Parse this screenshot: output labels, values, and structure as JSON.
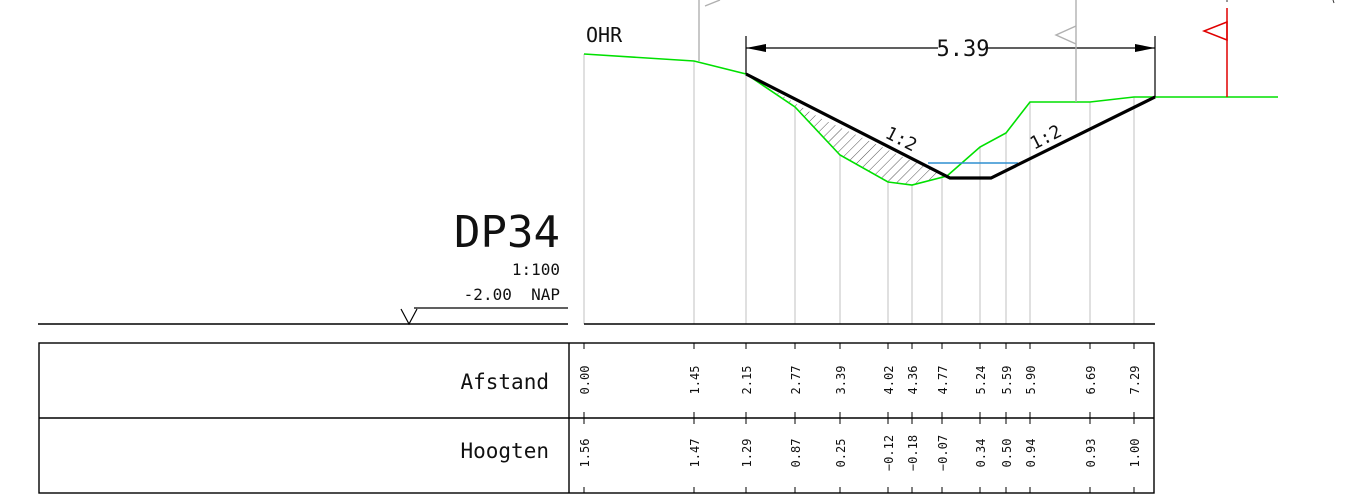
{
  "profile": {
    "name": "DP34",
    "scale": "1:100",
    "reference": "-2.00  NAP",
    "ohr_label": "OHR",
    "width_dimension": "5.39",
    "slope_left": "1:2",
    "slope_right": "1:2"
  },
  "table": {
    "row1_label": "Afstand",
    "row2_label": "Hoogten",
    "afstand": [
      "0.00",
      "1.45",
      "2.15",
      "2.77",
      "3.39",
      "4.02",
      "4.36",
      "4.77",
      "5.24",
      "5.59",
      "5.90",
      "6.69",
      "7.29"
    ],
    "hoogten": [
      "1.56",
      "1.47",
      "1.29",
      "0.87",
      "0.25",
      "-0.12",
      "-0.18",
      "-0.07",
      "0.34",
      "0.50",
      "0.94",
      "0.93",
      "1.00"
    ]
  },
  "colors": {
    "existing_ground": "#00e000",
    "design_profile": "#000000",
    "water_level": "#2f8fd0",
    "flag": "#e00000",
    "station_lines": "#cccccc"
  }
}
